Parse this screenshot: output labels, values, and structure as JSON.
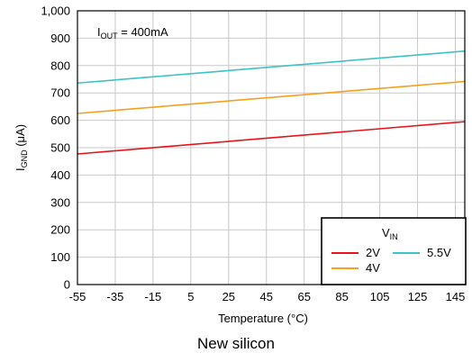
{
  "chart_data": {
    "type": "line",
    "xlabel_main": "Temperature (",
    "xlabel_unit": "°C)",
    "ylabel_main": "I",
    "ylabel_sub": "GND",
    "ylabel_unit": " (μA)",
    "annotation": {
      "main": "I",
      "sub": "OUT",
      "rest": " = 400mA"
    },
    "x_ticks": [
      "-55",
      "-35",
      "-15",
      "5",
      "25",
      "45",
      "65",
      "85",
      "105",
      "125",
      "145"
    ],
    "y_ticks": [
      "0",
      "100",
      "200",
      "300",
      "400",
      "500",
      "600",
      "700",
      "800",
      "900",
      "1,000"
    ],
    "xlim": [
      -55,
      150
    ],
    "ylim": [
      0,
      1000
    ],
    "grid": true,
    "legend": {
      "title_main": "V",
      "title_sub": "IN",
      "placement": "bottom-right"
    },
    "series": [
      {
        "name": "2V",
        "color": "#e8141b",
        "x": [
          -55,
          150
        ],
        "y": [
          477,
          595
        ]
      },
      {
        "name": "4V",
        "color": "#f5a11d",
        "x": [
          -55,
          150
        ],
        "y": [
          625,
          742
        ]
      },
      {
        "name": "5.5V",
        "color": "#3cc3c3",
        "x": [
          -55,
          150
        ],
        "y": [
          736,
          853
        ]
      }
    ]
  },
  "caption": "New silicon"
}
